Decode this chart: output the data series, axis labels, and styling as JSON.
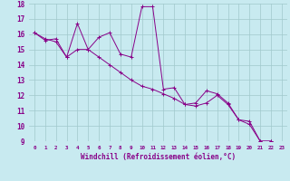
{
  "xlabel": "Windchill (Refroidissement éolien,°C)",
  "background_color": "#c8eaf0",
  "line_color": "#880088",
  "grid_color": "#a0c8cc",
  "x_values": [
    0,
    1,
    2,
    3,
    4,
    5,
    6,
    7,
    8,
    9,
    10,
    11,
    12,
    13,
    14,
    15,
    16,
    17,
    18,
    19,
    20,
    21,
    22,
    23
  ],
  "series1": [
    16.1,
    15.6,
    15.7,
    14.5,
    16.7,
    15.0,
    15.8,
    16.1,
    14.7,
    14.5,
    17.8,
    17.8,
    12.4,
    12.5,
    11.4,
    11.5,
    12.3,
    12.1,
    11.5,
    10.4,
    10.1,
    9.0,
    9.0,
    8.7
  ],
  "series2": [
    16.1,
    15.7,
    15.5,
    14.5,
    15.0,
    15.0,
    14.5,
    14.0,
    13.5,
    13.0,
    12.6,
    12.4,
    12.1,
    11.8,
    11.4,
    11.3,
    11.5,
    12.0,
    11.4,
    10.4,
    10.3,
    9.0,
    9.0,
    8.7
  ],
  "ylim": [
    9,
    18
  ],
  "xlim": [
    -0.5,
    23.5
  ],
  "yticks": [
    9,
    10,
    11,
    12,
    13,
    14,
    15,
    16,
    17,
    18
  ],
  "xticks": [
    0,
    1,
    2,
    3,
    4,
    5,
    6,
    7,
    8,
    9,
    10,
    11,
    12,
    13,
    14,
    15,
    16,
    17,
    18,
    19,
    20,
    21,
    22,
    23
  ]
}
